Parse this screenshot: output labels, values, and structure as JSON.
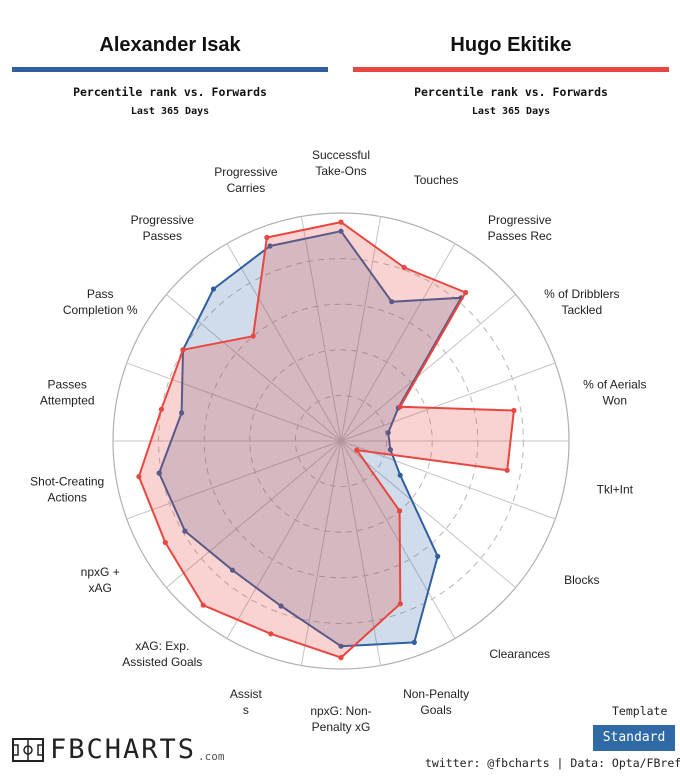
{
  "players": [
    {
      "name": "Alexander Isak",
      "subtitle": "Percentile rank vs. Forwards",
      "period": "Last 365 Days",
      "color": "#2f5f9e"
    },
    {
      "name": "Hugo Ekitike",
      "subtitle": "Percentile rank vs. Forwards",
      "period": "Last 365 Days",
      "color": "#e8473f"
    }
  ],
  "logo": {
    "text": "FBCHARTS",
    "suffix": ".com"
  },
  "template": {
    "label": "Template",
    "button": "Standard"
  },
  "footer": "twitter: @fbcharts | Data: Opta/FBref",
  "chart_data": {
    "type": "radar",
    "scale": [
      0,
      100
    ],
    "grid": true,
    "axes": [
      {
        "label": [
          "Passes",
          "Attempted"
        ]
      },
      {
        "label": [
          "Pass",
          "Completion %"
        ]
      },
      {
        "label": [
          "Progressive",
          "Passes"
        ]
      },
      {
        "label": [
          "Progressive",
          "Carries"
        ]
      },
      {
        "label": [
          "Successful",
          "Take-Ons"
        ]
      },
      {
        "label": [
          "Touches"
        ]
      },
      {
        "label": [
          "Progressive",
          "Passes Rec"
        ]
      },
      {
        "label": [
          "% of Dribblers",
          "Tackled"
        ]
      },
      {
        "label": [
          "% of Aerials",
          "Won"
        ]
      },
      {
        "label": [
          "Tkl+Int"
        ]
      },
      {
        "label": [
          "Blocks"
        ]
      },
      {
        "label": [
          "Clearances"
        ]
      },
      {
        "label": [
          "Non-Penalty",
          "Goals"
        ]
      },
      {
        "label": [
          "npxG: Non-",
          "Penalty xG"
        ]
      },
      {
        "label": [
          "Assist",
          "s"
        ]
      },
      {
        "label": [
          "xAG: Exp.",
          "Assisted Goals"
        ]
      },
      {
        "label": [
          "npxG +",
          "xAG"
        ]
      },
      {
        "label": [
          "Shot-Creating",
          "Actions"
        ]
      }
    ],
    "series": [
      {
        "name": "Alexander Isak",
        "values": [
          71,
          80,
          87,
          91,
          92,
          65,
          82,
          29,
          21,
          22,
          30,
          66,
          94,
          90,
          77,
          74,
          79,
          81
        ]
      },
      {
        "name": "Hugo Ekitike",
        "values": [
          80,
          80,
          60,
          95,
          96,
          81,
          85,
          30,
          77,
          74,
          8,
          40,
          76,
          95,
          90,
          94,
          89,
          90
        ]
      }
    ]
  }
}
